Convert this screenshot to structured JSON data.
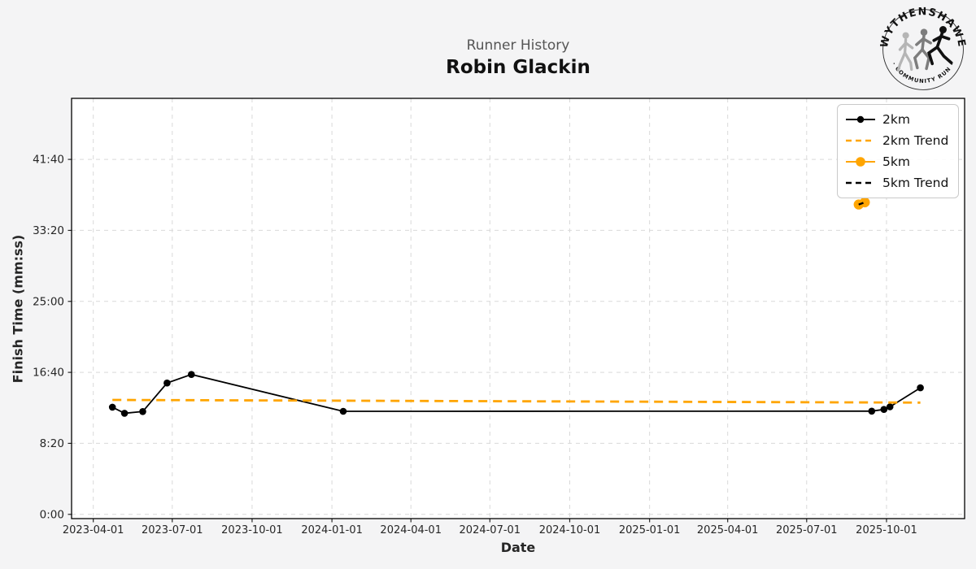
{
  "header": {
    "subtitle": "Runner History",
    "title": "Robin Glackin"
  },
  "logo": {
    "arc_top": "WYTHENSHAWE",
    "arc_bottom": "· COMMUNITY RUN ·"
  },
  "axes": {
    "xlabel": "Date",
    "ylabel": "Finish Time (mm:ss)"
  },
  "colors": {
    "figure_background": "#f4f4f5",
    "plot_background": "#ffffff",
    "grid": "#d9d9d9",
    "frame": "#000000",
    "orange": "#FFA500",
    "black_series": "#000000",
    "tick_text": "#262626",
    "subtitle_gray": "#555555"
  },
  "chart_data": {
    "type": "line",
    "title": "Runner History",
    "subtitle": "Robin Glackin",
    "xlabel": "Date",
    "ylabel": "Finish Time (mm:ss)",
    "grid": true,
    "grid_style": "dashed",
    "legend_position": "upper right",
    "xlim": [
      "2023-03-07",
      "2025-12-30"
    ],
    "ylim_seconds": [
      -30,
      2930
    ],
    "x_ticks": [
      "2023-04-01",
      "2023-07-01",
      "2023-10-01",
      "2024-01-01",
      "2024-04-01",
      "2024-07-01",
      "2024-10-01",
      "2025-01-01",
      "2025-04-01",
      "2025-07-01",
      "2025-10-01"
    ],
    "y_ticks": [
      {
        "seconds": 0,
        "label": "0:00"
      },
      {
        "seconds": 500,
        "label": "8:20"
      },
      {
        "seconds": 1000,
        "label": "16:40"
      },
      {
        "seconds": 1500,
        "label": "25:00"
      },
      {
        "seconds": 2000,
        "label": "33:20"
      },
      {
        "seconds": 2500,
        "label": "41:40"
      }
    ],
    "series": [
      {
        "name": "2km",
        "style": "solid",
        "marker": true,
        "color": "#000000",
        "marker_radius": 4.3,
        "line_width": 1.8,
        "points": [
          {
            "date": "2023-04-23",
            "seconds": 755,
            "time": "12:35"
          },
          {
            "date": "2023-05-07",
            "seconds": 712,
            "time": "11:52"
          },
          {
            "date": "2023-05-28",
            "seconds": 724,
            "time": "12:04"
          },
          {
            "date": "2023-06-25",
            "seconds": 925,
            "time": "15:25"
          },
          {
            "date": "2023-07-23",
            "seconds": 985,
            "time": "16:25"
          },
          {
            "date": "2024-01-14",
            "seconds": 726,
            "time": "12:06"
          },
          {
            "date": "2025-09-14",
            "seconds": 727,
            "time": "12:07"
          },
          {
            "date": "2025-09-28",
            "seconds": 739,
            "time": "12:19"
          },
          {
            "date": "2025-10-05",
            "seconds": 757,
            "time": "12:37"
          },
          {
            "date": "2025-11-09",
            "seconds": 891,
            "time": "14:51"
          }
        ]
      },
      {
        "name": "2km Trend",
        "style": "dashed",
        "marker": false,
        "color": "#FFA500",
        "marker_radius": 0,
        "line_width": 2.8,
        "dash": "11,7",
        "points": [
          {
            "date": "2023-04-23",
            "seconds": 806,
            "time": "13:26"
          },
          {
            "date": "2025-11-09",
            "seconds": 787,
            "time": "13:07"
          }
        ]
      },
      {
        "name": "5km",
        "style": "solid",
        "marker": true,
        "color": "#FFA500",
        "marker_radius": 6.2,
        "line_width": 2,
        "points": [
          {
            "date": "2025-08-30",
            "seconds": 2182,
            "time": "36:22"
          },
          {
            "date": "2025-09-06",
            "seconds": 2198,
            "time": "36:38"
          }
        ]
      },
      {
        "name": "5km Trend",
        "style": "dashed",
        "marker": false,
        "color": "#000000",
        "marker_radius": 0,
        "line_width": 2.2,
        "dash": "6,4",
        "points": [
          {
            "date": "2025-08-30",
            "seconds": 2182,
            "time": "36:22"
          },
          {
            "date": "2025-09-06",
            "seconds": 2198,
            "time": "36:38"
          }
        ]
      }
    ]
  },
  "legend": {
    "items": [
      {
        "label": "2km",
        "color": "#000000",
        "dash": false,
        "marker": true,
        "marker_radius": 4.2
      },
      {
        "label": "2km Trend",
        "color": "#FFA500",
        "dash": true,
        "marker": false,
        "marker_radius": 0
      },
      {
        "label": "5km",
        "color": "#FFA500",
        "dash": false,
        "marker": true,
        "marker_radius": 5.8
      },
      {
        "label": "5km Trend",
        "color": "#000000",
        "dash": true,
        "marker": false,
        "marker_radius": 0
      }
    ]
  }
}
